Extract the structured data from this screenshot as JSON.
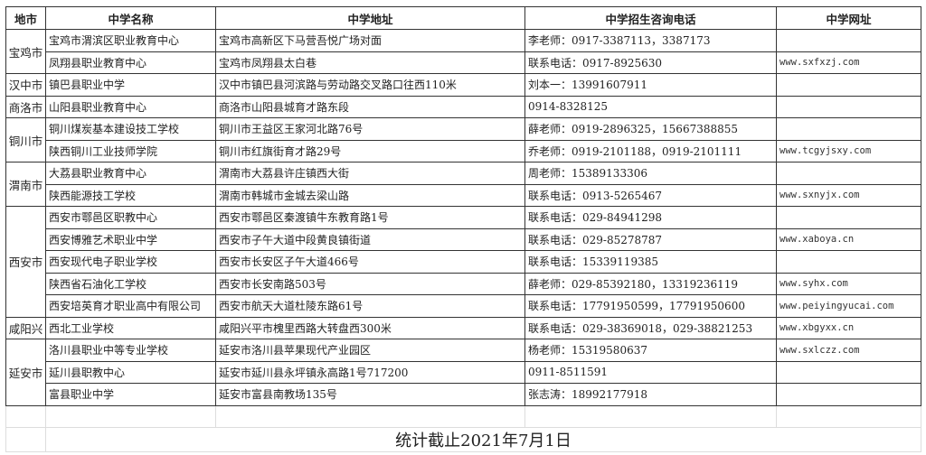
{
  "headers": [
    "地市",
    "中学名称",
    "中学地址",
    "中学招生咨询电话",
    "中学网址"
  ],
  "groups": [
    {
      "city": "宝鸡市",
      "rows": [
        {
          "name": "宝鸡市渭滨区职业教育中心",
          "address": "宝鸡市高新区下马营吾悦广场对面",
          "phone": "李老师：0917-3387113，3387173",
          "url": ""
        },
        {
          "name": "凤翔县职业教育中心",
          "address": "宝鸡市凤翔县太白巷",
          "phone": "联系电话：0917-8925630",
          "url": "www.sxfxzj.com"
        }
      ]
    },
    {
      "city": "汉中市",
      "rows": [
        {
          "name": "镇巴县职业中学",
          "address": "汉中市镇巴县河滨路与劳动路交叉路口往西110米",
          "phone": "刘本一：13991607911",
          "url": ""
        }
      ]
    },
    {
      "city": "商洛市",
      "rows": [
        {
          "name": "山阳县职业教育中心",
          "address": "商洛市山阳县城育才路东段",
          "phone": "0914-8328125",
          "url": ""
        }
      ]
    },
    {
      "city": "铜川市",
      "rows": [
        {
          "name": "铜川煤炭基本建设技工学校",
          "address": "铜川市王益区王家河北路76号",
          "phone": "薛老师：0919-2896325，15667388855",
          "url": ""
        },
        {
          "name": "陕西铜川工业技师学院",
          "address": "铜川市红旗街育才路29号",
          "phone": "乔老师：0919-2101188，0919-2101111",
          "url": "www.tcgyjsxy.com"
        }
      ]
    },
    {
      "city": "渭南市",
      "rows": [
        {
          "name": "大荔县职业教育中心",
          "address": "渭南市大荔县许庄镇西大街",
          "phone": "周老师：15389133306",
          "url": ""
        },
        {
          "name": "陕西能源技工学校",
          "address": "渭南市韩城市金城去梁山路",
          "phone": "联系电话：0913-5265467",
          "url": "www.sxnyjx.com"
        }
      ]
    },
    {
      "city": "西安市",
      "rows": [
        {
          "name": "西安市鄠邑区职教中心",
          "address": "西安市鄠邑区秦渡镇牛东教育路1号",
          "phone": "联系电话：029-84941298",
          "url": ""
        },
        {
          "name": "西安博雅艺术职业中学",
          "address": "西安市子午大道中段黄良镇街道",
          "phone": "联系电话：029-85278787",
          "url": "www.xaboya.cn"
        },
        {
          "name": "西安现代电子职业学校",
          "address": "西安市长安区子午大道466号",
          "phone": "联系电话：15339119385",
          "url": ""
        },
        {
          "name": "陕西省石油化工学校",
          "address": "西安市长安南路503号",
          "phone": "薛老师：029-85392180，13319236119",
          "url": "www.syhx.com"
        },
        {
          "name": "西安培英育才职业高中有限公司",
          "address": "西安市航天大道杜陵东路61号",
          "phone": "联系电话：17791950599，17791950600",
          "url": "www.peiyingyucai.com"
        }
      ]
    },
    {
      "city": "咸阳兴",
      "rows": [
        {
          "name": "西北工业学校",
          "address": "咸阳兴平市槐里西路大转盘西300米",
          "phone": "联系电话：029-38369018，029-38821253",
          "url": "www.xbgyxx.cn"
        }
      ]
    },
    {
      "city": "延安市",
      "rows": [
        {
          "name": "洛川县职业中等专业学校",
          "address": "延安市洛川县苹果现代产业园区",
          "phone": "杨老师：15319580637",
          "url": "www.sxlczz.com"
        },
        {
          "name": "延川县职教中心",
          "address": "延安市延川县永坪镇永高路1号717200",
          "phone": "0911-8511591",
          "url": ""
        },
        {
          "name": "富县职业中学",
          "address": "延安市富县南教场135号",
          "phone": "张志涛：18992177918",
          "url": ""
        }
      ]
    }
  ],
  "footer": "统计截止2021年7月1日"
}
